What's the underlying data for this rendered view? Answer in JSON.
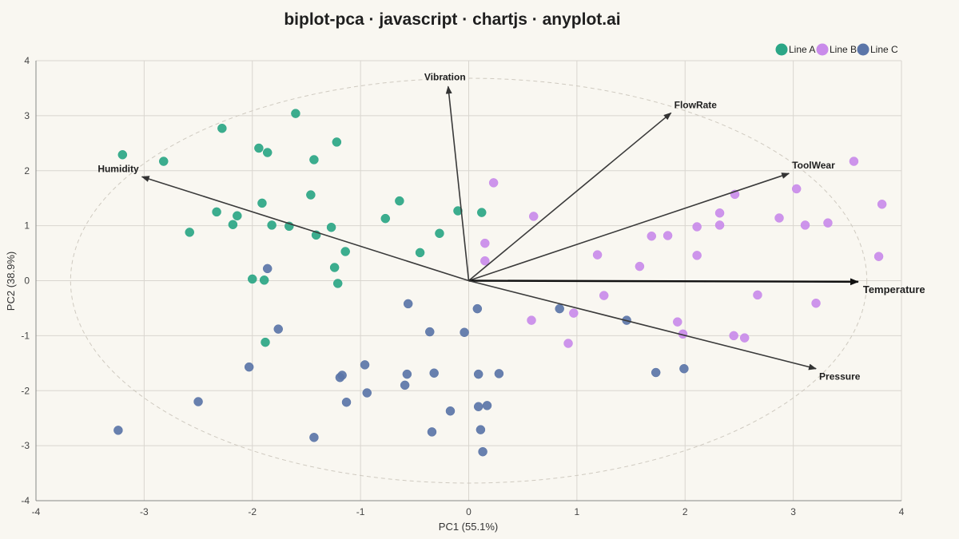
{
  "chart_data": {
    "type": "scatter",
    "title": "biplot-pca · javascript · chartjs · anyplot.ai",
    "xlabel": "PC1 (55.1%)",
    "ylabel": "PC2 (38.9%)",
    "xlim": [
      -4,
      4
    ],
    "ylim": [
      -4,
      4
    ],
    "x_ticks": [
      "-4",
      "-3",
      "-2",
      "-1",
      "0",
      "1",
      "2",
      "3",
      "4"
    ],
    "y_ticks": [
      "-4",
      "-3",
      "-2",
      "-1",
      "0",
      "1",
      "2",
      "3",
      "4"
    ],
    "grid": true,
    "legend_position": "top-right",
    "correlation_ellipse": {
      "rx": 3.68,
      "ry": 3.68
    },
    "series": [
      {
        "name": "Line A",
        "color": "#2ba686",
        "points": [
          [
            -3.2,
            2.29
          ],
          [
            -2.82,
            2.17
          ],
          [
            -2.28,
            2.77
          ],
          [
            -1.6,
            3.04
          ],
          [
            -1.94,
            2.41
          ],
          [
            -1.86,
            2.33
          ],
          [
            -1.22,
            2.52
          ],
          [
            -1.43,
            2.2
          ],
          [
            -2.33,
            1.25
          ],
          [
            -2.14,
            1.18
          ],
          [
            -2.18,
            1.02
          ],
          [
            -2.58,
            0.88
          ],
          [
            -1.91,
            1.41
          ],
          [
            -1.46,
            1.56
          ],
          [
            -1.82,
            1.01
          ],
          [
            -1.66,
            0.99
          ],
          [
            -1.41,
            0.83
          ],
          [
            -1.27,
            0.97
          ],
          [
            -0.77,
            1.13
          ],
          [
            -0.64,
            1.45
          ],
          [
            -0.1,
            1.27
          ],
          [
            0.12,
            1.24
          ],
          [
            -0.27,
            0.86
          ],
          [
            -0.45,
            0.51
          ],
          [
            -1.14,
            0.53
          ],
          [
            -1.24,
            0.24
          ],
          [
            -2.0,
            0.03
          ],
          [
            -1.89,
            0.01
          ],
          [
            -1.21,
            -0.05
          ],
          [
            -1.88,
            -1.12
          ]
        ]
      },
      {
        "name": "Line B",
        "color": "#c98bea",
        "points": [
          [
            0.23,
            1.78
          ],
          [
            0.6,
            1.17
          ],
          [
            0.15,
            0.68
          ],
          [
            0.15,
            0.36
          ],
          [
            1.19,
            0.47
          ],
          [
            1.69,
            0.81
          ],
          [
            1.84,
            0.82
          ],
          [
            1.58,
            0.26
          ],
          [
            2.11,
            0.98
          ],
          [
            2.32,
            1.23
          ],
          [
            2.32,
            1.01
          ],
          [
            2.46,
            1.57
          ],
          [
            2.11,
            0.46
          ],
          [
            2.87,
            1.14
          ],
          [
            3.03,
            1.67
          ],
          [
            3.11,
            1.01
          ],
          [
            3.32,
            1.05
          ],
          [
            3.56,
            2.17
          ],
          [
            3.82,
            1.39
          ],
          [
            3.79,
            0.44
          ],
          [
            1.25,
            -0.27
          ],
          [
            0.97,
            -0.59
          ],
          [
            0.58,
            -0.72
          ],
          [
            0.92,
            -1.14
          ],
          [
            1.93,
            -0.75
          ],
          [
            1.98,
            -0.97
          ],
          [
            2.45,
            -1.0
          ],
          [
            2.55,
            -1.04
          ],
          [
            2.67,
            -0.26
          ],
          [
            3.21,
            -0.41
          ]
        ]
      },
      {
        "name": "Line C",
        "color": "#5b75a8",
        "points": [
          [
            -1.86,
            0.22
          ],
          [
            -1.76,
            -0.88
          ],
          [
            -0.56,
            -0.42
          ],
          [
            0.08,
            -0.51
          ],
          [
            -0.36,
            -0.93
          ],
          [
            -0.04,
            -0.94
          ],
          [
            0.84,
            -0.51
          ],
          [
            1.46,
            -0.72
          ],
          [
            -2.03,
            -1.57
          ],
          [
            -2.5,
            -2.2
          ],
          [
            -3.24,
            -2.72
          ],
          [
            -1.17,
            -1.72
          ],
          [
            -1.19,
            -1.76
          ],
          [
            -0.96,
            -1.53
          ],
          [
            -0.57,
            -1.7
          ],
          [
            -0.32,
            -1.68
          ],
          [
            0.09,
            -1.7
          ],
          [
            0.28,
            -1.69
          ],
          [
            1.73,
            -1.67
          ],
          [
            1.99,
            -1.6
          ],
          [
            -1.13,
            -2.21
          ],
          [
            -0.94,
            -2.04
          ],
          [
            -0.59,
            -1.9
          ],
          [
            -0.17,
            -2.37
          ],
          [
            -0.34,
            -2.75
          ],
          [
            0.09,
            -2.29
          ],
          [
            0.17,
            -2.27
          ],
          [
            0.11,
            -2.71
          ],
          [
            0.13,
            -3.11
          ],
          [
            -1.43,
            -2.85
          ]
        ]
      }
    ],
    "loadings": [
      {
        "name": "Vibration",
        "x": -0.19,
        "y": 3.53
      },
      {
        "name": "FlowRate",
        "x": 1.87,
        "y": 3.05
      },
      {
        "name": "ToolWear",
        "x": 2.96,
        "y": 1.95
      },
      {
        "name": "Humidity",
        "x": -3.02,
        "y": 1.89
      },
      {
        "name": "Temperature",
        "x": 3.6,
        "y": -0.02
      },
      {
        "name": "Pressure",
        "x": 3.21,
        "y": -1.6
      }
    ]
  }
}
